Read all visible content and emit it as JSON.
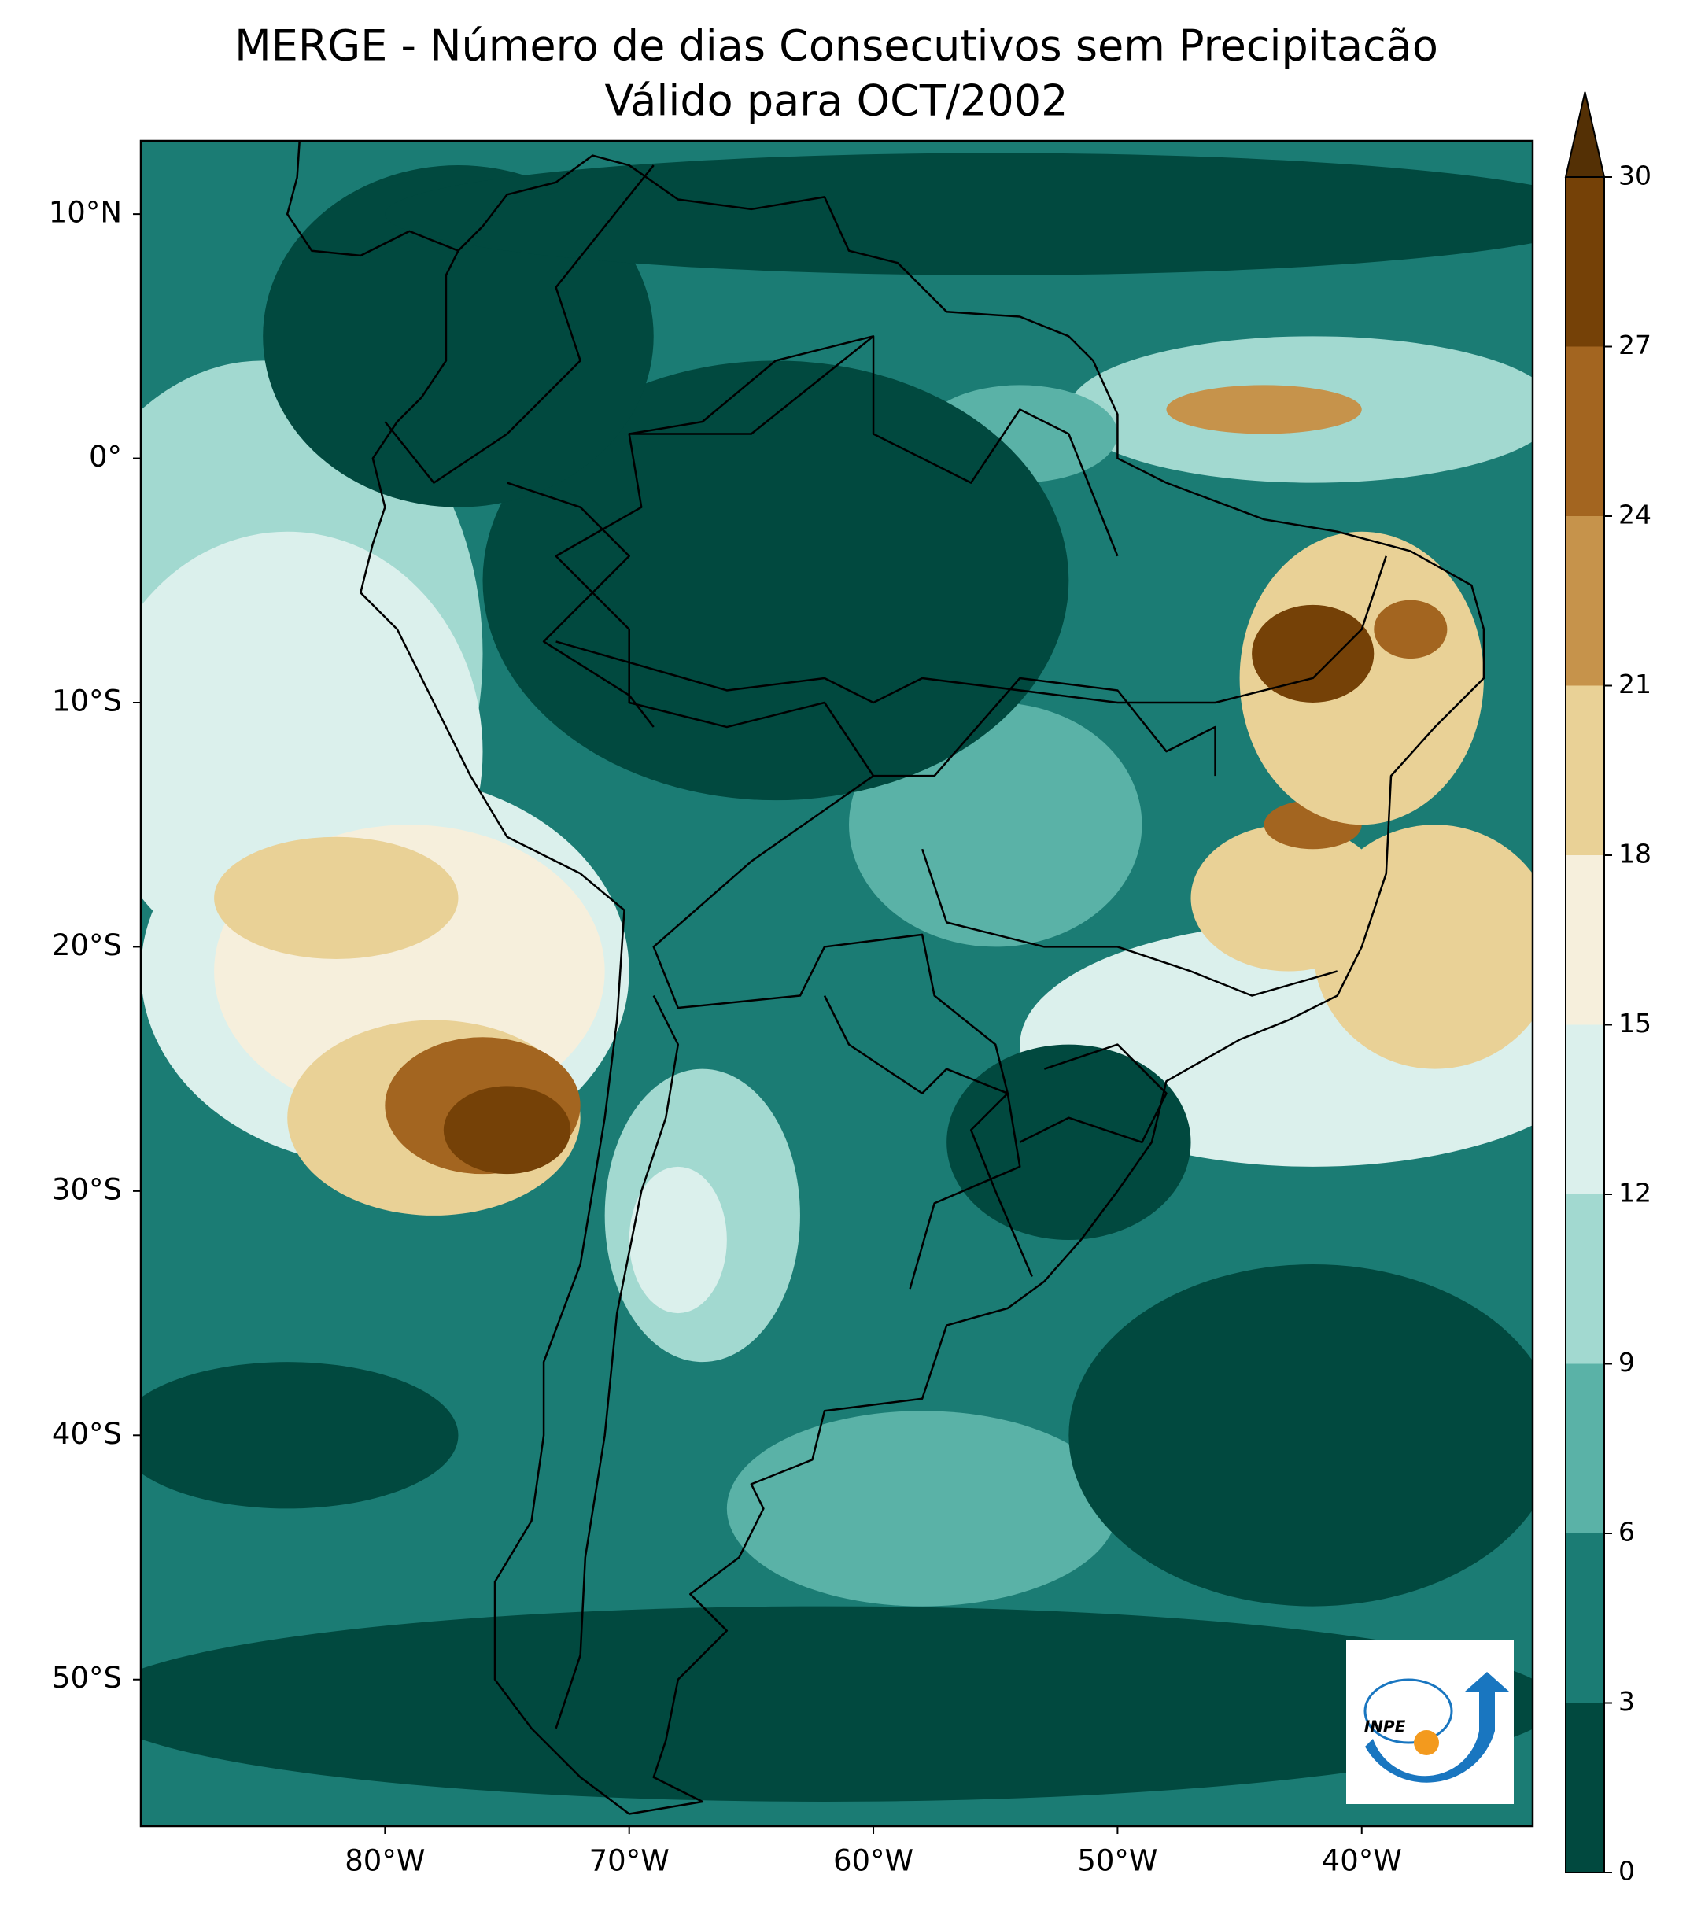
{
  "title": "MERGE - Número de dias Consecutivos sem Precipitacão",
  "subtitle": "Válido para OCT/2002",
  "map": {
    "lon_range": [
      -90,
      -33
    ],
    "lat_range": [
      -56,
      13
    ],
    "lon_ticks": [
      {
        "value": -80,
        "label": "80°W"
      },
      {
        "value": -70,
        "label": "70°W"
      },
      {
        "value": -60,
        "label": "60°W"
      },
      {
        "value": -50,
        "label": "50°W"
      },
      {
        "value": -40,
        "label": "40°W"
      }
    ],
    "lat_ticks": [
      {
        "value": 10,
        "label": "10°N"
      },
      {
        "value": 0,
        "label": "0°"
      },
      {
        "value": -10,
        "label": "10°S"
      },
      {
        "value": -20,
        "label": "20°S"
      },
      {
        "value": -30,
        "label": "30°S"
      },
      {
        "value": -40,
        "label": "40°S"
      },
      {
        "value": -50,
        "label": "50°S"
      }
    ]
  },
  "colorbar": {
    "ticks": [
      0,
      3,
      6,
      9,
      12,
      15,
      18,
      21,
      24,
      27,
      30
    ],
    "colors": [
      "#01493f",
      "#1b7c74",
      "#5ab2a7",
      "#a2d9d0",
      "#dbf0ec",
      "#f6efdc",
      "#e9d196",
      "#c6934b",
      "#a36520",
      "#754107"
    ],
    "extend_color": "#543005"
  },
  "logo": {
    "text": "INPE"
  }
}
